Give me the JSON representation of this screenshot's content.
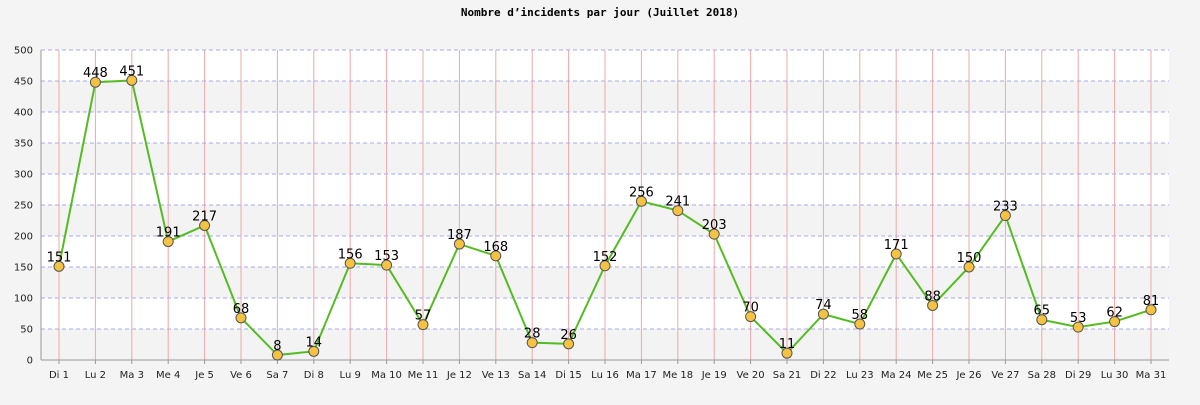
{
  "chart_data": {
    "type": "line",
    "title": "Nombre d’incidents par jour (Juillet 2018)",
    "xlabel": "",
    "ylabel": "",
    "ylim": [
      0,
      500
    ],
    "yticks": [
      0,
      50,
      100,
      150,
      200,
      250,
      300,
      350,
      400,
      450,
      500
    ],
    "grid": true,
    "categories": [
      "Di 1",
      "Lu 2",
      "Ma 3",
      "Me 4",
      "Je 5",
      "Ve 6",
      "Sa 7",
      "Di 8",
      "Lu 9",
      "Ma 10",
      "Me 11",
      "Je 12",
      "Ve 13",
      "Sa 14",
      "Di 15",
      "Lu 16",
      "Ma 17",
      "Me 18",
      "Je 19",
      "Ve 20",
      "Sa 21",
      "Di 22",
      "Lu 23",
      "Ma 24",
      "Me 25",
      "Je 26",
      "Ve 27",
      "Sa 28",
      "Di 29",
      "Lu 30",
      "Ma 31"
    ],
    "series": [
      {
        "values": [
          151,
          448,
          451,
          191,
          217,
          68,
          8,
          14,
          156,
          153,
          57,
          187,
          168,
          28,
          26,
          152,
          256,
          241,
          203,
          70,
          11,
          74,
          58,
          171,
          88,
          150,
          233,
          65,
          53,
          62,
          81
        ],
        "line_color": "#55bb22",
        "marker_color": "#f5c242"
      }
    ]
  }
}
